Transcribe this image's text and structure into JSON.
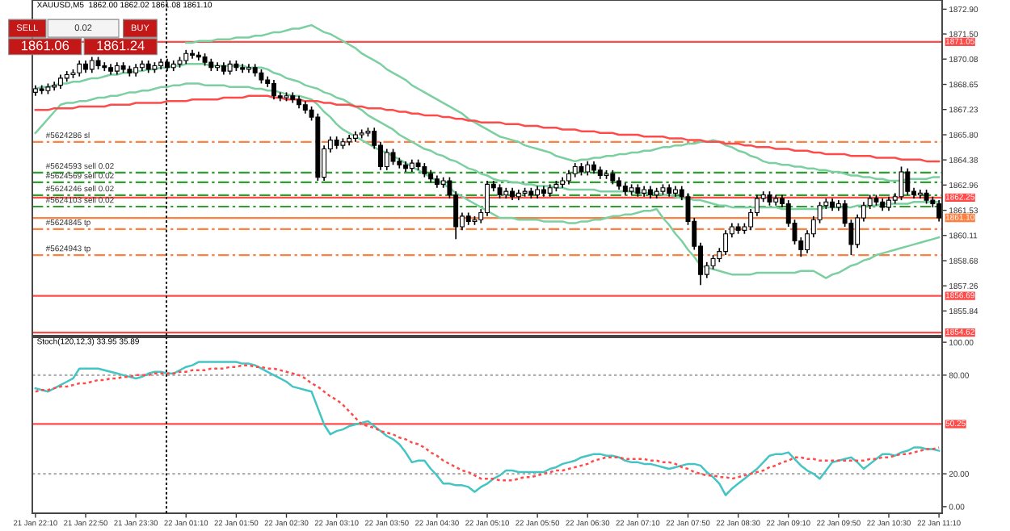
{
  "chart_data": [
    {
      "type": "candlestick",
      "title": "XAUUSD,M5  1862.00 1862.02 1861.08 1861.10",
      "color": "#000000",
      "categories": [
        null,
        null,
        null,
        null,
        null,
        null,
        null,
        null,
        null,
        null,
        null,
        null,
        null,
        null,
        null,
        null,
        null,
        null,
        null,
        null,
        null,
        null,
        null,
        null,
        null,
        null,
        null,
        null,
        null,
        null,
        null,
        null,
        null,
        null,
        null,
        null,
        null,
        null,
        null,
        null,
        null,
        null,
        null,
        null,
        null,
        null,
        null,
        null,
        null,
        null,
        null,
        null,
        null,
        null,
        null,
        null,
        null,
        null,
        null,
        null,
        null,
        null,
        null,
        null,
        null,
        null,
        null,
        null,
        null,
        null,
        null,
        null,
        null,
        null,
        null,
        null,
        null,
        null,
        null,
        null,
        null,
        null,
        null,
        null,
        null,
        null,
        null,
        null,
        null,
        null,
        null,
        null,
        null,
        null,
        null,
        null,
        null,
        null,
        null,
        null,
        null,
        null,
        null,
        null,
        null,
        null,
        null,
        null,
        null,
        null,
        null,
        null,
        null,
        null,
        null,
        null,
        null,
        null,
        null,
        null,
        null,
        null,
        null,
        null,
        null,
        null,
        null,
        null,
        null,
        null,
        null,
        null,
        null,
        null,
        null,
        null,
        null,
        null,
        null,
        null,
        null,
        null,
        null,
        null,
        null
      ],
      "ohlc": [
        [
          1868.2,
          1868.6,
          1868.0,
          1868.4
        ],
        [
          1868.4,
          1868.6,
          1868.1,
          1868.3
        ],
        [
          1868.3,
          1868.7,
          1868.1,
          1868.5
        ],
        [
          1868.5,
          1868.8,
          1868.3,
          1868.6
        ],
        [
          1868.6,
          1869.2,
          1868.4,
          1869.0
        ],
        [
          1869.0,
          1869.4,
          1868.8,
          1869.2
        ],
        [
          1869.2,
          1869.5,
          1869.0,
          1869.3
        ],
        [
          1869.3,
          1870.0,
          1869.1,
          1869.8
        ],
        [
          1869.8,
          1870.0,
          1869.3,
          1869.5
        ],
        [
          1869.5,
          1870.2,
          1869.3,
          1870.0
        ],
        [
          1870.0,
          1870.2,
          1869.5,
          1869.7
        ],
        [
          1869.7,
          1869.9,
          1869.4,
          1869.6
        ],
        [
          1869.6,
          1869.8,
          1869.2,
          1869.4
        ],
        [
          1869.4,
          1869.9,
          1869.2,
          1869.7
        ],
        [
          1869.7,
          1869.9,
          1869.3,
          1869.5
        ],
        [
          1869.5,
          1869.7,
          1869.1,
          1869.3
        ],
        [
          1869.3,
          1869.8,
          1869.1,
          1869.6
        ],
        [
          1869.6,
          1870.0,
          1869.4,
          1869.8
        ],
        [
          1869.8,
          1870.0,
          1869.3,
          1869.5
        ],
        [
          1869.5,
          1869.9,
          1869.3,
          1869.7
        ],
        [
          1869.7,
          1870.1,
          1869.5,
          1869.9
        ],
        [
          1869.9,
          1870.1,
          1869.4,
          1869.6
        ],
        [
          1869.6,
          1870.0,
          1869.4,
          1869.8
        ],
        [
          1869.8,
          1870.2,
          1869.6,
          1870.0
        ],
        [
          1870.0,
          1870.6,
          1869.8,
          1870.4
        ],
        [
          1870.4,
          1870.6,
          1870.1,
          1870.3
        ],
        [
          1870.3,
          1870.5,
          1870.0,
          1870.2
        ],
        [
          1870.2,
          1870.4,
          1869.7,
          1869.9
        ],
        [
          1869.9,
          1870.1,
          1869.4,
          1869.6
        ],
        [
          1869.6,
          1869.9,
          1869.4,
          1869.7
        ],
        [
          1869.7,
          1869.9,
          1869.2,
          1869.4
        ],
        [
          1869.4,
          1870.0,
          1869.2,
          1869.8
        ],
        [
          1869.8,
          1870.0,
          1869.4,
          1869.6
        ],
        [
          1869.6,
          1869.8,
          1869.3,
          1869.5
        ],
        [
          1869.5,
          1869.8,
          1869.3,
          1869.6
        ],
        [
          1869.6,
          1869.8,
          1869.1,
          1869.3
        ],
        [
          1869.3,
          1869.5,
          1868.7,
          1868.9
        ],
        [
          1868.9,
          1869.1,
          1868.5,
          1868.7
        ],
        [
          1868.7,
          1868.9,
          1867.8,
          1868.0
        ],
        [
          1868.0,
          1868.2,
          1867.7,
          1867.9
        ],
        [
          1867.9,
          1868.2,
          1867.7,
          1868.0
        ],
        [
          1868.0,
          1868.2,
          1867.6,
          1867.8
        ],
        [
          1867.8,
          1868.0,
          1867.3,
          1867.5
        ],
        [
          1867.5,
          1867.7,
          1867.0,
          1867.2
        ],
        [
          1867.2,
          1867.4,
          1866.6,
          1866.8
        ],
        [
          1866.8,
          1867.0,
          1863.2,
          1863.4
        ],
        [
          1863.4,
          1865.2,
          1863.2,
          1865.0
        ],
        [
          1865.0,
          1865.7,
          1864.8,
          1865.5
        ],
        [
          1865.5,
          1865.7,
          1865.0,
          1865.2
        ],
        [
          1865.2,
          1865.6,
          1865.0,
          1865.4
        ],
        [
          1865.4,
          1865.8,
          1865.2,
          1865.6
        ],
        [
          1865.6,
          1866.0,
          1865.4,
          1865.8
        ],
        [
          1865.8,
          1866.1,
          1865.6,
          1865.9
        ],
        [
          1865.9,
          1866.2,
          1865.7,
          1866.0
        ],
        [
          1866.0,
          1866.2,
          1865.0,
          1865.2
        ],
        [
          1865.2,
          1865.4,
          1863.8,
          1864.0
        ],
        [
          1864.0,
          1865.0,
          1863.8,
          1864.8
        ],
        [
          1864.8,
          1865.0,
          1864.1,
          1864.3
        ],
        [
          1864.3,
          1864.5,
          1863.9,
          1864.1
        ],
        [
          1864.1,
          1864.3,
          1863.7,
          1863.9
        ],
        [
          1863.9,
          1864.4,
          1863.7,
          1864.2
        ],
        [
          1864.2,
          1864.4,
          1863.8,
          1864.0
        ],
        [
          1864.0,
          1864.2,
          1863.4,
          1863.6
        ],
        [
          1863.6,
          1863.8,
          1863.1,
          1863.3
        ],
        [
          1863.3,
          1863.5,
          1862.8,
          1863.0
        ],
        [
          1863.0,
          1863.4,
          1862.8,
          1863.2
        ],
        [
          1863.2,
          1863.4,
          1862.2,
          1862.4
        ],
        [
          1862.4,
          1862.6,
          1859.9,
          1860.6
        ],
        [
          1860.6,
          1861.4,
          1860.4,
          1861.2
        ],
        [
          1861.2,
          1861.4,
          1860.7,
          1860.9
        ],
        [
          1860.9,
          1861.2,
          1860.7,
          1861.0
        ],
        [
          1861.0,
          1861.6,
          1860.8,
          1861.4
        ],
        [
          1861.4,
          1863.2,
          1861.2,
          1863.0
        ],
        [
          1863.0,
          1863.2,
          1862.6,
          1862.8
        ],
        [
          1862.8,
          1863.0,
          1862.2,
          1862.4
        ],
        [
          1862.4,
          1862.8,
          1862.2,
          1862.6
        ],
        [
          1862.6,
          1862.8,
          1862.1,
          1862.3
        ],
        [
          1862.3,
          1862.7,
          1862.1,
          1862.5
        ],
        [
          1862.5,
          1862.8,
          1862.3,
          1862.6
        ],
        [
          1862.6,
          1862.8,
          1862.2,
          1862.4
        ],
        [
          1862.4,
          1862.9,
          1862.2,
          1862.7
        ],
        [
          1862.7,
          1862.9,
          1862.3,
          1862.5
        ],
        [
          1862.5,
          1863.0,
          1862.3,
          1862.8
        ],
        [
          1862.8,
          1863.2,
          1862.6,
          1863.0
        ],
        [
          1863.0,
          1863.4,
          1862.8,
          1863.2
        ],
        [
          1863.2,
          1863.8,
          1863.0,
          1863.6
        ],
        [
          1863.6,
          1864.2,
          1863.4,
          1864.0
        ],
        [
          1864.0,
          1864.2,
          1863.5,
          1863.7
        ],
        [
          1863.7,
          1864.3,
          1863.5,
          1864.1
        ],
        [
          1864.1,
          1864.3,
          1863.6,
          1863.8
        ],
        [
          1863.8,
          1864.0,
          1863.3,
          1863.5
        ],
        [
          1863.5,
          1863.8,
          1863.3,
          1863.6
        ],
        [
          1863.6,
          1863.8,
          1863.0,
          1863.2
        ],
        [
          1863.2,
          1863.4,
          1862.7,
          1862.9
        ],
        [
          1862.9,
          1863.1,
          1862.4,
          1862.6
        ],
        [
          1862.6,
          1863.0,
          1862.4,
          1862.8
        ],
        [
          1862.8,
          1863.0,
          1862.3,
          1862.5
        ],
        [
          1862.5,
          1862.9,
          1862.3,
          1862.7
        ],
        [
          1862.7,
          1862.9,
          1862.2,
          1862.4
        ],
        [
          1862.4,
          1862.8,
          1862.2,
          1862.6
        ],
        [
          1862.6,
          1863.0,
          1862.4,
          1862.8
        ],
        [
          1862.8,
          1863.0,
          1862.3,
          1862.5
        ],
        [
          1862.5,
          1862.9,
          1862.3,
          1862.7
        ],
        [
          1862.7,
          1862.9,
          1862.1,
          1862.3
        ],
        [
          1862.3,
          1862.5,
          1860.7,
          1860.9
        ],
        [
          1860.9,
          1861.1,
          1859.3,
          1859.5
        ],
        [
          1859.5,
          1859.7,
          1857.3,
          1857.9
        ],
        [
          1857.9,
          1858.6,
          1857.7,
          1858.4
        ],
        [
          1858.4,
          1859.0,
          1858.2,
          1858.8
        ],
        [
          1858.8,
          1859.4,
          1858.6,
          1859.2
        ],
        [
          1859.2,
          1860.4,
          1859.0,
          1860.2
        ],
        [
          1860.2,
          1860.8,
          1860.0,
          1860.6
        ],
        [
          1860.6,
          1860.8,
          1860.2,
          1860.4
        ],
        [
          1860.4,
          1860.8,
          1860.2,
          1860.6
        ],
        [
          1860.6,
          1861.6,
          1860.4,
          1861.4
        ],
        [
          1861.4,
          1862.4,
          1861.2,
          1862.2
        ],
        [
          1862.2,
          1862.6,
          1862.0,
          1862.4
        ],
        [
          1862.4,
          1862.6,
          1861.8,
          1862.0
        ],
        [
          1862.0,
          1862.4,
          1861.8,
          1862.2
        ],
        [
          1862.2,
          1862.4,
          1861.7,
          1861.9
        ],
        [
          1861.9,
          1862.1,
          1860.6,
          1860.8
        ],
        [
          1860.8,
          1861.0,
          1859.6,
          1859.8
        ],
        [
          1859.8,
          1860.0,
          1858.9,
          1859.3
        ],
        [
          1859.3,
          1860.4,
          1859.1,
          1860.2
        ],
        [
          1860.2,
          1861.2,
          1860.0,
          1861.0
        ],
        [
          1861.0,
          1862.0,
          1860.8,
          1861.8
        ],
        [
          1861.8,
          1862.2,
          1861.6,
          1862.0
        ],
        [
          1862.0,
          1862.2,
          1861.5,
          1861.7
        ],
        [
          1861.7,
          1862.1,
          1861.5,
          1861.9
        ],
        [
          1861.9,
          1862.1,
          1860.6,
          1860.8
        ],
        [
          1860.8,
          1861.0,
          1859.0,
          1859.6
        ],
        [
          1859.6,
          1861.3,
          1859.4,
          1861.1
        ],
        [
          1861.1,
          1862.0,
          1860.9,
          1861.8
        ],
        [
          1861.8,
          1862.4,
          1861.6,
          1862.2
        ],
        [
          1862.2,
          1862.4,
          1861.8,
          1862.0
        ],
        [
          1862.0,
          1862.2,
          1861.5,
          1861.7
        ],
        [
          1861.7,
          1862.3,
          1861.5,
          1862.1
        ],
        [
          1862.1,
          1862.5,
          1861.9,
          1862.3
        ],
        [
          1862.3,
          1864.0,
          1862.1,
          1863.7
        ],
        [
          1863.7,
          1863.9,
          1862.4,
          1862.6
        ],
        [
          1862.6,
          1862.8,
          1862.2,
          1862.4
        ],
        [
          1862.4,
          1862.7,
          1862.2,
          1862.5
        ],
        [
          1862.5,
          1862.7,
          1861.9,
          1862.1
        ],
        [
          1862.1,
          1862.3,
          1861.7,
          1861.9
        ],
        [
          1861.9,
          1862.1,
          1860.9,
          1861.1
        ]
      ],
      "series": [
        {
          "type": "line",
          "color": "#7ccfa0",
          "values": [
            null,
            null,
            null,
            null,
            null,
            null,
            null,
            null,
            null,
            null,
            null,
            null,
            null,
            null,
            null,
            null,
            null,
            null,
            null,
            null,
            null,
            null,
            null,
            null,
            1871.0,
            1871.0,
            1871.1,
            1871.1,
            1871.1,
            1871.2,
            1871.2,
            1871.2,
            1871.3,
            1871.3,
            1871.3,
            1871.4,
            1871.4,
            1871.5,
            1871.6,
            1871.6,
            1871.7,
            1871.8,
            1871.8,
            1871.9,
            1872.0,
            1871.8,
            1871.6,
            1871.5,
            1871.3,
            1871.1,
            1870.9,
            1870.7,
            1870.4,
            1870.2,
            1870.0,
            1869.8,
            1869.5,
            1869.3,
            1869.1,
            1868.9,
            1868.6,
            1868.4,
            1868.2,
            1868.0,
            1867.8,
            1867.6,
            1867.4,
            1867.2,
            1867.0,
            1866.7,
            1866.5,
            1866.3,
            1866.1,
            1865.9,
            1865.7,
            1865.6,
            1865.5,
            1865.4,
            1865.2,
            1865.1,
            1865.0,
            1864.9,
            1864.8,
            1864.6,
            1864.5,
            1864.4,
            1864.3,
            1864.4,
            1864.4,
            1864.5,
            1864.5,
            1864.6,
            1864.6,
            1864.7,
            1864.7,
            1864.8,
            1864.8,
            1864.9,
            1864.9,
            1865.0,
            1865.1,
            1865.1,
            1865.2,
            1865.2,
            1865.3,
            1865.3,
            1865.4,
            1865.4,
            1865.5,
            1865.4,
            1865.2,
            1865.1,
            1864.9,
            1864.8,
            1864.6,
            1864.5,
            1864.3,
            1864.2,
            1864.2,
            1864.1,
            1864.1,
            1864.0,
            1864.0,
            1863.9,
            1863.9,
            1863.8,
            1863.8,
            1863.7,
            1863.7,
            1863.6,
            1863.5,
            1863.5,
            1863.4,
            1863.4,
            1863.3,
            1863.3,
            1863.2,
            1863.2,
            1863.2,
            1863.3,
            1863.3,
            1863.3,
            1863.3,
            1863.4,
            1863.4
          ]
        },
        {
          "type": "line",
          "color": "#7ccfa0",
          "values": [
            1868.4,
            1868.5,
            1868.5,
            1868.6,
            1868.7,
            1868.7,
            1868.8,
            1868.8,
            1868.9,
            1869.0,
            1869.0,
            1869.1,
            1869.2,
            1869.2,
            1869.3,
            1869.3,
            1869.4,
            1869.4,
            1869.5,
            1869.5,
            1869.6,
            1869.6,
            1869.7,
            1869.7,
            1869.8,
            1869.8,
            1869.8,
            1869.8,
            1869.7,
            1869.7,
            1869.7,
            1869.7,
            1869.7,
            1869.7,
            1869.6,
            1869.6,
            1869.6,
            1869.5,
            1869.3,
            1869.2,
            1869.0,
            1868.9,
            1868.8,
            1868.6,
            1868.5,
            1868.4,
            1868.2,
            1868.1,
            1867.9,
            1867.8,
            1867.6,
            1867.4,
            1867.2,
            1866.9,
            1866.7,
            1866.5,
            1866.3,
            1866.1,
            1865.8,
            1865.6,
            1865.4,
            1865.2,
            1865.0,
            1864.9,
            1864.7,
            1864.6,
            1864.4,
            1864.3,
            1864.1,
            1863.9,
            1863.8,
            1863.6,
            1863.5,
            1863.3,
            1863.2,
            1863.2,
            1863.1,
            1863.1,
            1863.0,
            1863.0,
            1862.9,
            1862.9,
            1862.9,
            1862.8,
            1862.8,
            1862.7,
            1862.7,
            1862.7,
            1862.7,
            1862.7,
            1862.6,
            1862.6,
            1862.6,
            1862.6,
            1862.6,
            1862.6,
            1862.5,
            1862.5,
            1862.5,
            1862.5,
            1862.4,
            1862.4,
            1862.3,
            1862.2,
            1862.2,
            1862.1,
            1862.1,
            1862.0,
            1861.9,
            1861.8,
            1861.8,
            1861.7,
            1861.7,
            1861.7,
            1861.7,
            1861.7,
            1861.7,
            1861.7,
            1861.7,
            1861.6,
            1861.6,
            1861.6,
            1861.6,
            1861.6,
            1861.6,
            1861.6,
            1861.7,
            1861.7,
            1861.7,
            1861.7,
            1861.7,
            1861.8,
            1861.8,
            1861.8,
            1861.8,
            1861.9,
            1861.9,
            1861.9,
            1861.9,
            1861.9,
            1862.0,
            1862.0,
            1862.0,
            1862.0,
            1862.0
          ]
        },
        {
          "type": "line",
          "color": "#7ccfa0",
          "values": [
            1865.9,
            1866.3,
            1866.7,
            1867.1,
            1867.5,
            1867.6,
            1867.6,
            1867.7,
            1867.7,
            1867.8,
            1867.9,
            1867.9,
            1868.0,
            1868.0,
            1868.1,
            1868.2,
            1868.2,
            1868.3,
            1868.3,
            1868.4,
            1868.5,
            1868.5,
            1868.6,
            1868.6,
            1868.7,
            1868.7,
            1868.7,
            1868.6,
            1868.6,
            1868.6,
            1868.6,
            1868.5,
            1868.5,
            1868.5,
            1868.5,
            1868.4,
            1868.4,
            1868.3,
            1868.3,
            1868.2,
            1868.1,
            1868.0,
            1868.0,
            1867.9,
            1867.8,
            1867.5,
            1867.1,
            1866.8,
            1866.4,
            1866.1,
            1865.9,
            1865.7,
            1865.5,
            1865.3,
            1865.1,
            1864.9,
            1864.8,
            1864.6,
            1864.4,
            1864.2,
            1864.0,
            1863.8,
            1863.6,
            1863.4,
            1863.2,
            1863.0,
            1862.8,
            1862.5,
            1862.3,
            1862.1,
            1861.9,
            1861.7,
            1861.5,
            1861.3,
            1861.1,
            1861.1,
            1861.1,
            1861.0,
            1861.0,
            1861.0,
            1861.0,
            1860.9,
            1860.9,
            1860.9,
            1860.9,
            1860.8,
            1860.8,
            1860.9,
            1860.9,
            1861.0,
            1861.0,
            1861.1,
            1861.2,
            1861.2,
            1861.3,
            1861.3,
            1861.4,
            1861.5,
            1861.5,
            1861.6,
            1861.1,
            1860.7,
            1860.2,
            1859.8,
            1859.3,
            1858.9,
            1858.4,
            1858.3,
            1858.2,
            1858.1,
            1858.0,
            1857.9,
            1857.9,
            1857.9,
            1857.9,
            1858.0,
            1858.0,
            1858.0,
            1858.0,
            1858.0,
            1858.0,
            1858.0,
            1858.1,
            1858.1,
            1858.1,
            1857.9,
            1857.7,
            1857.9,
            1858.0,
            1858.2,
            1858.4,
            1858.5,
            1858.7,
            1858.8,
            1859.0,
            1859.1,
            1859.2,
            1859.3,
            1859.4,
            1859.5,
            1859.6,
            1859.7,
            1859.8,
            1859.9,
            1860.0
          ]
        },
        {
          "type": "line",
          "color": "#ff4a4a",
          "values": [
            1867.2,
            1867.2,
            1867.2,
            1867.3,
            1867.3,
            1867.3,
            1867.3,
            1867.4,
            1867.4,
            1867.4,
            1867.4,
            1867.4,
            1867.5,
            1867.5,
            1867.5,
            1867.5,
            1867.6,
            1867.6,
            1867.6,
            1867.6,
            1867.6,
            1867.7,
            1867.7,
            1867.7,
            1867.7,
            1867.8,
            1867.8,
            1867.8,
            1867.8,
            1867.8,
            1867.9,
            1867.9,
            1867.9,
            1867.9,
            1868.0,
            1868.0,
            1868.0,
            1868.0,
            1867.9,
            1867.9,
            1867.8,
            1867.8,
            1867.8,
            1867.7,
            1867.7,
            1867.7,
            1867.6,
            1867.6,
            1867.5,
            1867.5,
            1867.5,
            1867.4,
            1867.4,
            1867.3,
            1867.3,
            1867.3,
            1867.2,
            1867.2,
            1867.1,
            1867.1,
            1867.0,
            1867.0,
            1866.9,
            1866.9,
            1866.9,
            1866.8,
            1866.8,
            1866.7,
            1866.7,
            1866.6,
            1866.6,
            1866.5,
            1866.5,
            1866.5,
            1866.5,
            1866.4,
            1866.4,
            1866.4,
            1866.3,
            1866.3,
            1866.3,
            1866.2,
            1866.2,
            1866.2,
            1866.1,
            1866.1,
            1866.1,
            1866.0,
            1866.0,
            1866.0,
            1865.9,
            1865.9,
            1865.9,
            1865.8,
            1865.8,
            1865.8,
            1865.8,
            1865.7,
            1865.7,
            1865.7,
            1865.7,
            1865.6,
            1865.6,
            1865.6,
            1865.5,
            1865.5,
            1865.5,
            1865.4,
            1865.4,
            1865.4,
            1865.3,
            1865.3,
            1865.3,
            1865.2,
            1865.2,
            1865.1,
            1865.1,
            1865.1,
            1865.0,
            1865.0,
            1865.0,
            1864.9,
            1864.9,
            1864.9,
            1864.8,
            1864.8,
            1864.7,
            1864.7,
            1864.7,
            1864.7,
            1864.6,
            1864.6,
            1864.6,
            1864.6,
            1864.5,
            1864.5,
            1864.5,
            1864.5,
            1864.4,
            1864.4,
            1864.4,
            1864.4,
            1864.3,
            1864.3,
            1864.3
          ]
        }
      ],
      "ylim": [
        1854.44,
        1873.42
      ],
      "yticks": [
        {
          "value": 1872.9,
          "label": "1872.90"
        },
        {
          "value": 1871.5,
          "label": "1871.50"
        },
        {
          "value": 1870.08,
          "label": "1870.08"
        },
        {
          "value": 1868.65,
          "label": "1868.65"
        },
        {
          "value": 1867.23,
          "label": "1867.23"
        },
        {
          "value": 1865.8,
          "label": "1865.80"
        },
        {
          "value": 1864.38,
          "label": "1864.38"
        },
        {
          "value": 1862.96,
          "label": "1862.96"
        },
        {
          "value": 1861.53,
          "label": "1861.53"
        },
        {
          "value": 1860.11,
          "label": "1860.11"
        },
        {
          "value": 1858.68,
          "label": "1858.68"
        },
        {
          "value": 1857.26,
          "label": "1857.26"
        },
        {
          "value": 1855.84,
          "label": "1855.84"
        }
      ],
      "tick_labels": "y",
      "ref_lines": [
        {
          "axis": "y",
          "value": 1871.05,
          "label": "1871.05",
          "color": "#ff4a4a",
          "line_style": "solid"
        },
        {
          "axis": "y",
          "value": 1862.25,
          "label": "1862.25",
          "color": "#ff4a4a",
          "line_style": "solid"
        },
        {
          "axis": "y",
          "value": 1861.1,
          "label": "1861.10",
          "color": "#ff8040",
          "line_style": "solid"
        },
        {
          "axis": "y",
          "value": 1856.69,
          "label": "1856.69",
          "color": "#ff4a4a",
          "line_style": "solid"
        },
        {
          "axis": "y",
          "value": 1854.62,
          "label": "1854.62",
          "color": "#ff4a4a",
          "line_style": "solid"
        },
        {
          "axis": "y",
          "value": 1865.4,
          "label": "#5624286 sl",
          "color": "#ff8040",
          "line_style": "dashed"
        },
        {
          "axis": "y",
          "value": 1863.66,
          "label": "#5624593 sell 0.02",
          "color": "#2ea02e",
          "line_style": "dashed"
        },
        {
          "axis": "y",
          "value": 1863.11,
          "label": "#5624569 sell 0.02",
          "color": "#2ea02e",
          "line_style": "dashed"
        },
        {
          "axis": "y",
          "value": 1862.38,
          "label": "#5624246 sell 0.02",
          "color": "#2ea02e",
          "line_style": "dashed"
        },
        {
          "axis": "y",
          "value": 1861.74,
          "label": "#5624103 sell 0.02",
          "color": "#2ea02e",
          "line_style": "dashed"
        },
        {
          "axis": "y",
          "value": 1860.47,
          "label": "#5624845 tp",
          "color": "#ff8040",
          "line_style": "dashed"
        },
        {
          "axis": "y",
          "value": 1859.0,
          "label": "#5624943 tp",
          "color": "#ff8040",
          "line_style": "dashed"
        }
      ],
      "annotations": [
        "SELL",
        "0.02",
        "BUY",
        "1861.06",
        "1861.24"
      ]
    },
    {
      "type": "line",
      "title": "Stoch(120,12,3) 33.95 35.89",
      "categories": [
        "21 Jan 22:10",
        null,
        null,
        null,
        null,
        null,
        null,
        null,
        "21 Jan 22:50",
        null,
        null,
        null,
        null,
        null,
        null,
        null,
        "21 Jan 23:30",
        null,
        null,
        null,
        null,
        null,
        null,
        null,
        "22 Jan 01:10",
        null,
        null,
        null,
        null,
        null,
        null,
        null,
        "22 Jan 01:50",
        null,
        null,
        null,
        null,
        null,
        null,
        null,
        "22 Jan 02:30",
        null,
        null,
        null,
        null,
        null,
        null,
        null,
        "22 Jan 03:10",
        null,
        null,
        null,
        null,
        null,
        null,
        null,
        "22 Jan 03:50",
        null,
        null,
        null,
        null,
        null,
        null,
        null,
        "22 Jan 04:30",
        null,
        null,
        null,
        null,
        null,
        null,
        null,
        "22 Jan 05:10",
        null,
        null,
        null,
        null,
        null,
        null,
        null,
        "22 Jan 05:50",
        null,
        null,
        null,
        null,
        null,
        null,
        null,
        "22 Jan 06:30",
        null,
        null,
        null,
        null,
        null,
        null,
        null,
        "22 Jan 07:10",
        null,
        null,
        null,
        null,
        null,
        null,
        null,
        "22 Jan 07:50",
        null,
        null,
        null,
        null,
        null,
        null,
        null,
        "22 Jan 08:30",
        null,
        null,
        null,
        null,
        null,
        null,
        null,
        "22 Jan 09:10",
        null,
        null,
        null,
        null,
        null,
        null,
        null,
        "22 Jan 09:50",
        null,
        null,
        null,
        null,
        null,
        null,
        null,
        "22 Jan 10:30",
        null,
        null,
        null,
        null,
        null,
        null,
        null,
        "22 Jan 11:10"
      ],
      "series": [
        {
          "color": "#45c4c4",
          "line_style": "solid",
          "values": [
            72,
            71,
            70,
            72,
            74,
            76,
            78,
            84,
            84,
            84,
            84,
            83,
            82,
            81,
            80,
            79,
            78,
            79,
            81,
            82,
            82,
            81,
            81,
            83,
            85,
            86,
            88,
            88,
            88,
            88,
            88,
            88,
            88,
            87,
            87,
            86,
            84,
            82,
            80,
            78,
            76,
            73,
            72,
            71,
            70,
            60,
            50,
            44,
            46,
            47,
            49,
            50,
            51,
            52,
            49,
            46,
            43,
            41,
            38,
            33,
            27,
            28,
            28,
            23,
            19,
            14,
            14,
            13,
            13,
            12,
            9,
            12,
            14,
            17,
            19,
            22,
            22,
            21,
            21,
            21,
            21,
            21,
            23,
            24,
            26,
            27,
            28,
            30,
            31,
            32,
            32,
            31,
            31,
            30,
            28,
            27,
            27,
            26,
            26,
            25,
            24,
            23,
            24,
            25,
            26,
            26,
            25,
            21,
            18,
            14,
            7,
            11,
            14,
            17,
            20,
            23,
            27,
            31,
            32,
            32,
            33,
            29,
            25,
            22,
            20,
            17,
            22,
            27,
            28,
            29,
            30,
            27,
            23,
            26,
            29,
            32,
            32,
            31,
            33,
            34,
            36,
            36,
            35,
            35,
            34
          ]
        },
        {
          "color": "#ff4a4a",
          "line_style": "dotted",
          "values": [
            70,
            71,
            71,
            72,
            73,
            73,
            74,
            75,
            75,
            76,
            77,
            77,
            78,
            78,
            79,
            79,
            80,
            80,
            80,
            81,
            81,
            81,
            81,
            82,
            82,
            83,
            83,
            83,
            84,
            84,
            84,
            85,
            85,
            86,
            86,
            85,
            85,
            84,
            84,
            83,
            82,
            81,
            80,
            78,
            75,
            73,
            70,
            67,
            65,
            62,
            58,
            54,
            50,
            49,
            48,
            46,
            45,
            44,
            42,
            41,
            39,
            38,
            36,
            33,
            31,
            28,
            26,
            24,
            22,
            21,
            19,
            17,
            17,
            17,
            16,
            16,
            16,
            17,
            18,
            18,
            19,
            20,
            21,
            22,
            22,
            23,
            24,
            25,
            26,
            28,
            29,
            30,
            30,
            30,
            29,
            29,
            29,
            29,
            28,
            28,
            27,
            27,
            26,
            24,
            23,
            21,
            20,
            19,
            19,
            18,
            18,
            17,
            18,
            19,
            20,
            21,
            22,
            24,
            25,
            27,
            28,
            30,
            30,
            29,
            29,
            28,
            28,
            28,
            28,
            28,
            28,
            28,
            28,
            29,
            29,
            30,
            30,
            31,
            32,
            32,
            33,
            34,
            35,
            35,
            36
          ]
        }
      ],
      "ylim": [
        -4,
        103
      ],
      "yticks": [
        {
          "value": 100,
          "label": "100.00"
        },
        {
          "value": 80,
          "label": "80.00"
        },
        {
          "value": 20,
          "label": "20.00"
        },
        {
          "value": 0,
          "label": "0.00"
        }
      ],
      "ref_lines": [
        {
          "axis": "y",
          "value": 80,
          "color": "#b0b0b0",
          "line_style": "dotted"
        },
        {
          "axis": "y",
          "value": 20,
          "color": "#b0b0b0",
          "line_style": "dotted"
        },
        {
          "axis": "y",
          "value": 50.25,
          "label": "50.25",
          "color": "#ff4a4a",
          "line_style": "solid"
        }
      ]
    }
  ]
}
